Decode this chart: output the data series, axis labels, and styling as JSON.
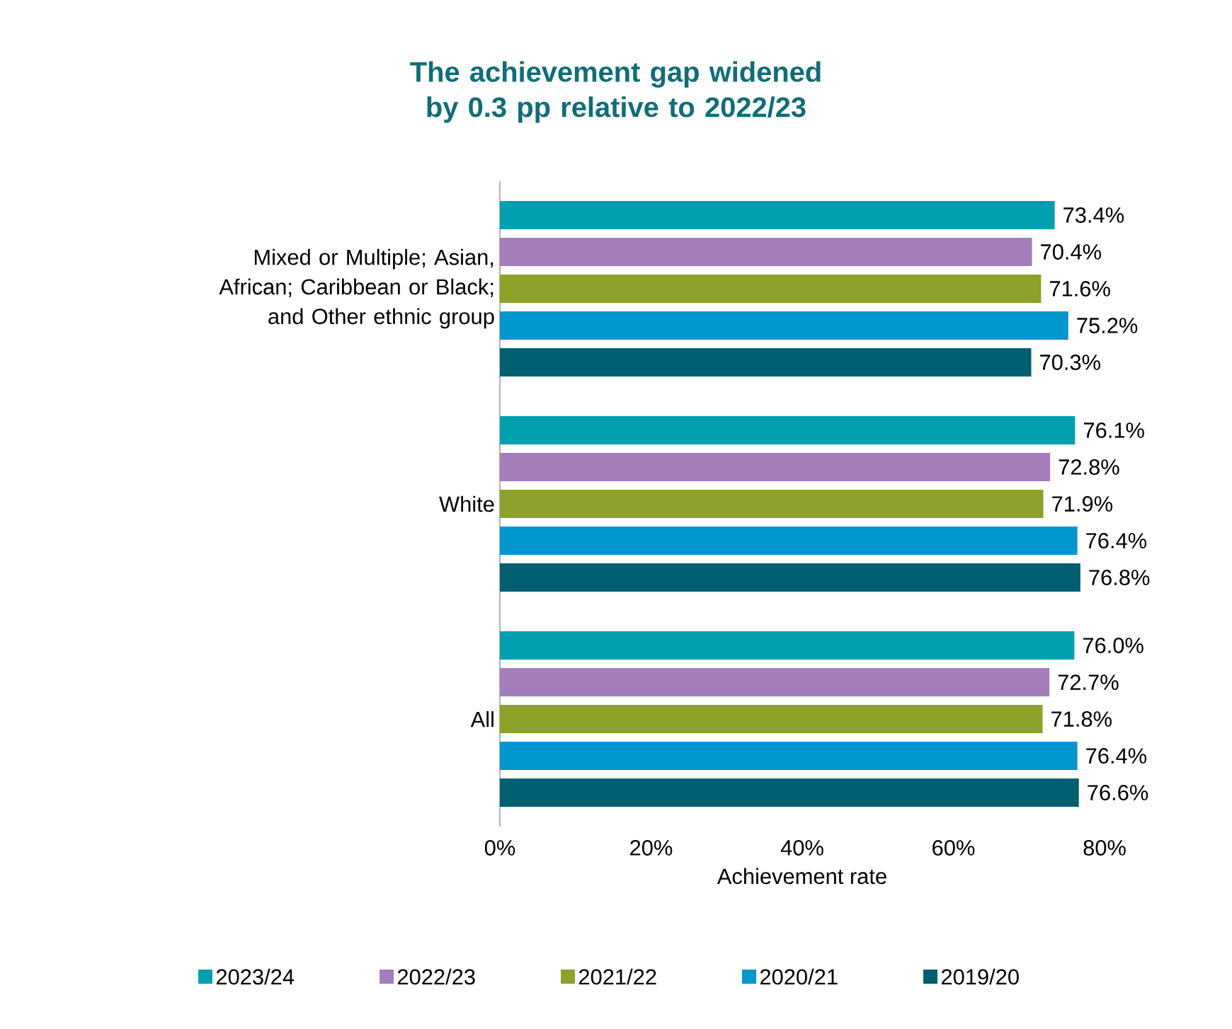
{
  "chart_data": {
    "type": "bar",
    "orientation": "horizontal",
    "title": "The achievement gap widened by 0.3 pp relative to 2022/23",
    "xlabel": "Achievement rate",
    "categories": [
      "Mixed or Multiple; Asian, African; Caribbean or Black; and Other ethnic group",
      "White",
      "All"
    ],
    "series": [
      {
        "name": "2023/24",
        "color": "#00a0b0",
        "values": [
          73.4,
          76.1,
          76.0
        ],
        "value_labels": [
          "73.4%",
          "76.1%",
          "76.0%"
        ]
      },
      {
        "name": "2022/23",
        "color": "#a47dbb",
        "values": [
          70.4,
          72.8,
          72.7
        ],
        "value_labels": [
          "70.4%",
          "72.8%",
          "72.7%"
        ]
      },
      {
        "name": "2021/22",
        "color": "#8ca22a",
        "values": [
          71.6,
          71.9,
          71.8
        ],
        "value_labels": [
          "71.6%",
          "71.9%",
          "71.8%"
        ]
      },
      {
        "name": "2020/21",
        "color": "#0096d0",
        "values": [
          75.2,
          76.4,
          76.4
        ],
        "value_labels": [
          "75.2%",
          "76.4%",
          "76.4%"
        ]
      },
      {
        "name": "2019/20",
        "color": "#005f70",
        "values": [
          70.3,
          76.8,
          76.6
        ],
        "value_labels": [
          "70.3%",
          "76.8%",
          "76.6%"
        ]
      }
    ],
    "xlim": [
      0,
      80
    ],
    "xticks": [
      {
        "value": 0,
        "label": "0%"
      },
      {
        "value": 20,
        "label": "20%"
      },
      {
        "value": 40,
        "label": "40%"
      },
      {
        "value": 60,
        "label": "60%"
      },
      {
        "value": 80,
        "label": "80%"
      }
    ],
    "legend": "bottom",
    "grid": false
  }
}
